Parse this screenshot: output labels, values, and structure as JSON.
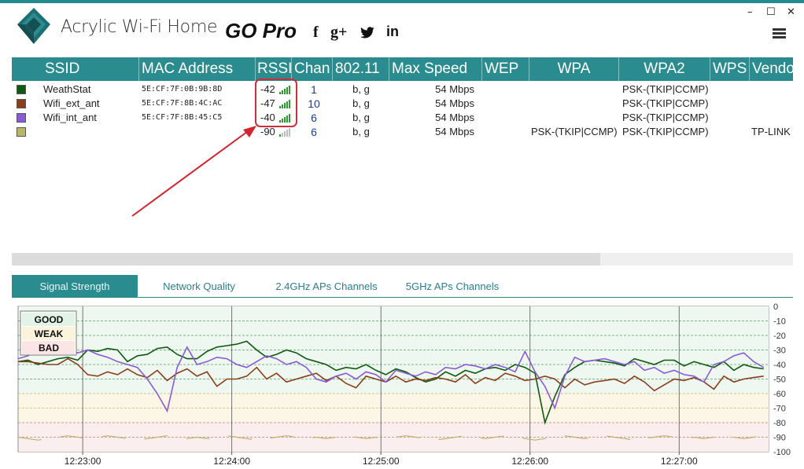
{
  "window": {
    "title": "Acrylic Wi-Fi Home",
    "go_pro": "GO Pro",
    "social": [
      "f",
      "g+",
      "twitter",
      "in"
    ],
    "controls": {
      "minimize": "–",
      "maximize": "☐",
      "close": "✕"
    }
  },
  "colors": {
    "accent": "#2b8c8f",
    "highlight": "#c8303c",
    "series": [
      "#0f5a0f",
      "#8b3e1a",
      "#8a5bd6",
      "#b9b56a"
    ]
  },
  "table": {
    "columns": [
      "SSID",
      "MAC Address",
      "RSSI",
      "Chan",
      "802.11",
      "Max Speed",
      "WEP",
      "WPA",
      "WPA2",
      "WPS",
      "Vendor"
    ],
    "rows": [
      {
        "color": "#0f5a0f",
        "ssid": "WeathStat",
        "mac": "5E:CF:7F:0B:9B:8D",
        "rssi": "-42",
        "bars": 5,
        "chan": "1",
        "std": "b, g",
        "speed": "54 Mbps",
        "wep": "",
        "wpa": "",
        "wpa2": "PSK-(TKIP|CCMP)",
        "wps": "",
        "vendor": ""
      },
      {
        "color": "#8b3e1a",
        "ssid": "Wifi_ext_ant",
        "mac": "5E:CF:7F:8B:4C:AC",
        "rssi": "-47",
        "bars": 5,
        "chan": "10",
        "std": "b, g",
        "speed": "54 Mbps",
        "wep": "",
        "wpa": "",
        "wpa2": "PSK-(TKIP|CCMP)",
        "wps": "",
        "vendor": ""
      },
      {
        "color": "#8a5bd6",
        "ssid": "Wifi_int_ant",
        "mac": "5E:CF:7F:8B:45:C5",
        "rssi": "-40",
        "bars": 5,
        "chan": "6",
        "std": "b, g",
        "speed": "54 Mbps",
        "wep": "",
        "wpa": "",
        "wpa2": "PSK-(TKIP|CCMP)",
        "wps": "",
        "vendor": ""
      },
      {
        "color": "#b9b56a",
        "ssid": "",
        "mac": "",
        "rssi": "-90",
        "bars": 1,
        "chan": "6",
        "std": "b, g",
        "speed": "54 Mbps",
        "wep": "",
        "wpa": "PSK-(TKIP|CCMP)",
        "wpa2": "PSK-(TKIP|CCMP)",
        "wps": "",
        "vendor": "TP-LINK"
      }
    ]
  },
  "tabs": [
    {
      "label": "Signal Strength",
      "active": true
    },
    {
      "label": "Network Quality",
      "active": false
    },
    {
      "label": "2.4GHz APs Channels",
      "active": false
    },
    {
      "label": "5GHz APs Channels",
      "active": false
    }
  ],
  "chart_data": {
    "type": "line",
    "title": "",
    "xlabel": "",
    "ylabel": "",
    "ylim": [
      -100,
      0
    ],
    "yticks": [
      "0",
      "-10",
      "-20",
      "-30",
      "-40",
      "-50",
      "-60",
      "-70",
      "-80",
      "-90",
      "-100"
    ],
    "xticks": [
      "12:23:00",
      "12:24:00",
      "12:25:00",
      "12:26:00",
      "12:27:00"
    ],
    "legend_labels": [
      "GOOD",
      "WEAK",
      "BAD"
    ],
    "legend_position": "top-left",
    "zones": {
      "good": [
        -60,
        0
      ],
      "weak": [
        -80,
        -60
      ],
      "bad": [
        -100,
        -80
      ]
    },
    "x_range_seconds": [
      -26,
      276
    ],
    "series": [
      {
        "name": "WeathStat",
        "color": "#0f5a0f",
        "t": [
          -26,
          -22,
          -18,
          -14,
          -10,
          -6,
          -2,
          2,
          6,
          10,
          14,
          18,
          22,
          26,
          30,
          34,
          38,
          42,
          46,
          50,
          54,
          58,
          62,
          66,
          70,
          74,
          78,
          82,
          86,
          90,
          94,
          98,
          102,
          106,
          110,
          114,
          118,
          122,
          126,
          130,
          134,
          138,
          142,
          146,
          150,
          154,
          158,
          162,
          166,
          170,
          174,
          178,
          182,
          186,
          190,
          194,
          198,
          202,
          206,
          210,
          214,
          218,
          222,
          226,
          230,
          234,
          238,
          242,
          246,
          250,
          254,
          258,
          262,
          266,
          270,
          274
        ],
        "y": [
          -38,
          -37,
          -40,
          -38,
          -36,
          -35,
          -37,
          -30,
          -31,
          -29,
          -30,
          -38,
          -34,
          -33,
          -29,
          -28,
          -33,
          -36,
          -36,
          -31,
          -28,
          -27,
          -26,
          -24,
          -30,
          -35,
          -33,
          -30,
          -32,
          -36,
          -38,
          -40,
          -44,
          -42,
          -43,
          -40,
          -44,
          -47,
          -43,
          -45,
          -49,
          -52,
          -50,
          -45,
          -48,
          -44,
          -46,
          -43,
          -42,
          -44,
          -40,
          -42,
          -46,
          -80,
          -62,
          -47,
          -42,
          -38,
          -37,
          -38,
          -39,
          -41,
          -36,
          -38,
          -40,
          -37,
          -37,
          -41,
          -38,
          -40,
          -42,
          -38,
          -44,
          -40,
          -42,
          -43
        ]
      },
      {
        "name": "Wifi_ext_ant",
        "color": "#8b3e1a",
        "t": [
          -26,
          -22,
          -18,
          -14,
          -10,
          -6,
          -2,
          2,
          6,
          10,
          14,
          18,
          22,
          26,
          30,
          34,
          38,
          42,
          46,
          50,
          54,
          58,
          62,
          66,
          70,
          74,
          78,
          82,
          86,
          90,
          94,
          98,
          102,
          106,
          110,
          114,
          118,
          122,
          126,
          130,
          134,
          138,
          142,
          146,
          150,
          154,
          158,
          162,
          166,
          170,
          174,
          178,
          182,
          186,
          190,
          194,
          198,
          202,
          206,
          210,
          214,
          218,
          222,
          226,
          230,
          234,
          238,
          242,
          246,
          250,
          254,
          258,
          262,
          266,
          270,
          274
        ],
        "y": [
          -38,
          -38,
          -39,
          -40,
          -40,
          -36,
          -40,
          -47,
          -48,
          -45,
          -47,
          -43,
          -47,
          -49,
          -44,
          -51,
          -46,
          -43,
          -48,
          -45,
          -55,
          -50,
          -50,
          -48,
          -42,
          -50,
          -46,
          -52,
          -50,
          -48,
          -46,
          -51,
          -48,
          -53,
          -56,
          -48,
          -50,
          -52,
          -48,
          -52,
          -50,
          -51,
          -49,
          -50,
          -52,
          -47,
          -53,
          -49,
          -51,
          -46,
          -48,
          -51,
          -50,
          -48,
          -50,
          -56,
          -50,
          -54,
          -52,
          -51,
          -50,
          -53,
          -48,
          -52,
          -58,
          -54,
          -50,
          -51,
          -49,
          -52,
          -57,
          -48,
          -52,
          -50,
          -49,
          -48
        ]
      },
      {
        "name": "Wifi_int_ant",
        "color": "#8a5bd6",
        "t": [
          -26,
          -22,
          -18,
          -14,
          -10,
          -6,
          -2,
          2,
          6,
          10,
          14,
          18,
          22,
          26,
          30,
          34,
          38,
          42,
          46,
          50,
          54,
          58,
          62,
          66,
          70,
          74,
          78,
          82,
          86,
          90,
          94,
          98,
          102,
          106,
          110,
          114,
          118,
          122,
          126,
          130,
          134,
          138,
          142,
          146,
          150,
          154,
          158,
          162,
          166,
          170,
          174,
          178,
          182,
          186,
          190,
          194,
          198,
          202,
          206,
          210,
          214,
          218,
          222,
          226,
          230,
          234,
          238,
          242,
          246,
          250,
          254,
          258,
          262,
          266,
          270,
          274
        ],
        "y": [
          -36,
          -34,
          -30,
          -28,
          -27,
          -30,
          -32,
          -30,
          -33,
          -35,
          -38,
          -40,
          -42,
          -50,
          -60,
          -72,
          -42,
          -28,
          -40,
          -38,
          -35,
          -36,
          -40,
          -42,
          -38,
          -34,
          -36,
          -40,
          -38,
          -42,
          -50,
          -52,
          -48,
          -46,
          -50,
          -45,
          -47,
          -52,
          -44,
          -46,
          -48,
          -45,
          -47,
          -42,
          -43,
          -40,
          -41,
          -43,
          -40,
          -42,
          -45,
          -31,
          -45,
          -55,
          -70,
          -48,
          -35,
          -38,
          -37,
          -36,
          -38,
          -40,
          -38,
          -44,
          -42,
          -46,
          -44,
          -47,
          -48,
          -52,
          -40,
          -38,
          -34,
          -32,
          -38,
          -42
        ]
      },
      {
        "name": "",
        "color": "#b9b56a",
        "t": [
          -26,
          -22,
          -18,
          -14,
          -10,
          -6,
          -2,
          2,
          6,
          10,
          14,
          18,
          22,
          26,
          30,
          34,
          38,
          42,
          46,
          50,
          54,
          58,
          62,
          66,
          70,
          74,
          78,
          82,
          86,
          90,
          94,
          98,
          102,
          106,
          110,
          114,
          118,
          122,
          126,
          130,
          134,
          138,
          142,
          146,
          150,
          154,
          158,
          162,
          166,
          170,
          174,
          178,
          182,
          186,
          190,
          194,
          198,
          202,
          206,
          210,
          214,
          218,
          222,
          226,
          230,
          234,
          238,
          242,
          246,
          250,
          254,
          258,
          262,
          266,
          270,
          274
        ],
        "y": [
          -90,
          -91,
          -92,
          -91,
          -90,
          -89,
          -90,
          -91,
          -90,
          -89,
          -90,
          -91,
          -92,
          -91,
          -90,
          -89,
          -90,
          -91,
          -90,
          -91,
          -90,
          -89,
          -90,
          -91,
          -92,
          -91,
          -90,
          -89,
          -90,
          -91,
          -90,
          -91,
          -90,
          -89,
          -90,
          -91,
          -90,
          -91,
          -90,
          -89,
          -90,
          -91,
          -92,
          -91,
          -90,
          -89,
          -90,
          -91,
          -90,
          -89,
          -90,
          -91,
          -92,
          -91,
          -90,
          -89,
          -90,
          -91,
          -90,
          -89,
          -90,
          -91,
          -92,
          -91,
          -90,
          -89,
          -90,
          -91,
          -90,
          -91,
          -90,
          -89,
          -90,
          -91,
          -90,
          -89
        ]
      }
    ]
  }
}
